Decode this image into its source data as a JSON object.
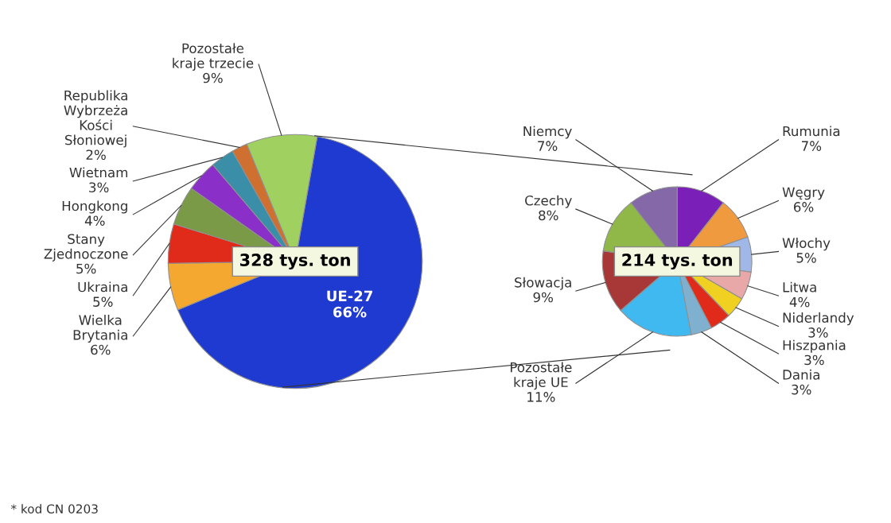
{
  "chart_data": [
    {
      "type": "pie",
      "categories": [
        "UE-27",
        "Wielka Brytania",
        "Ukraina",
        "Stany Zjednoczone",
        "Hongkong",
        "Wietnam",
        "Republika Wybrzeża Kości Słoniowej",
        "Pozostałe kraje trzecie"
      ],
      "values": [
        66,
        6,
        5,
        5,
        4,
        3,
        2,
        9
      ],
      "colors": [
        "#1e3ad0",
        "#f5a830",
        "#e02a1a",
        "#7a9a48",
        "#8a30c8",
        "#3a8ea8",
        "#d07030",
        "#a0d060"
      ],
      "value_labels": [
        "66%",
        "6%",
        "5%",
        "5%",
        "4%",
        "3%",
        "2%",
        "9%"
      ],
      "annotations": [
        "328 tys. ton",
        "* kod CN 0203"
      ]
    },
    {
      "type": "pie",
      "categories": [
        "Rumunia",
        "Węgry",
        "Włochy",
        "Litwa",
        "Niderlandy",
        "Hiszpania",
        "Dania",
        "Pozostałe kraje UE",
        "Słowacja",
        "Czechy",
        "Niemcy"
      ],
      "values": [
        7,
        6,
        5,
        4,
        3,
        3,
        3,
        11,
        9,
        8,
        7
      ],
      "colors": [
        "#7a20b8",
        "#f09a40",
        "#a0b8e8",
        "#e8a8a8",
        "#f0d020",
        "#e02a1a",
        "#80b0d0",
        "#40b8f0",
        "#a83838",
        "#90b848",
        "#8468a8"
      ],
      "value_labels": [
        "7%",
        "6%",
        "5%",
        "4%",
        "3%",
        "3%",
        "3%",
        "11%",
        "9%",
        "8%",
        "7%"
      ],
      "annotations": [
        "214 tys. ton"
      ]
    }
  ]
}
